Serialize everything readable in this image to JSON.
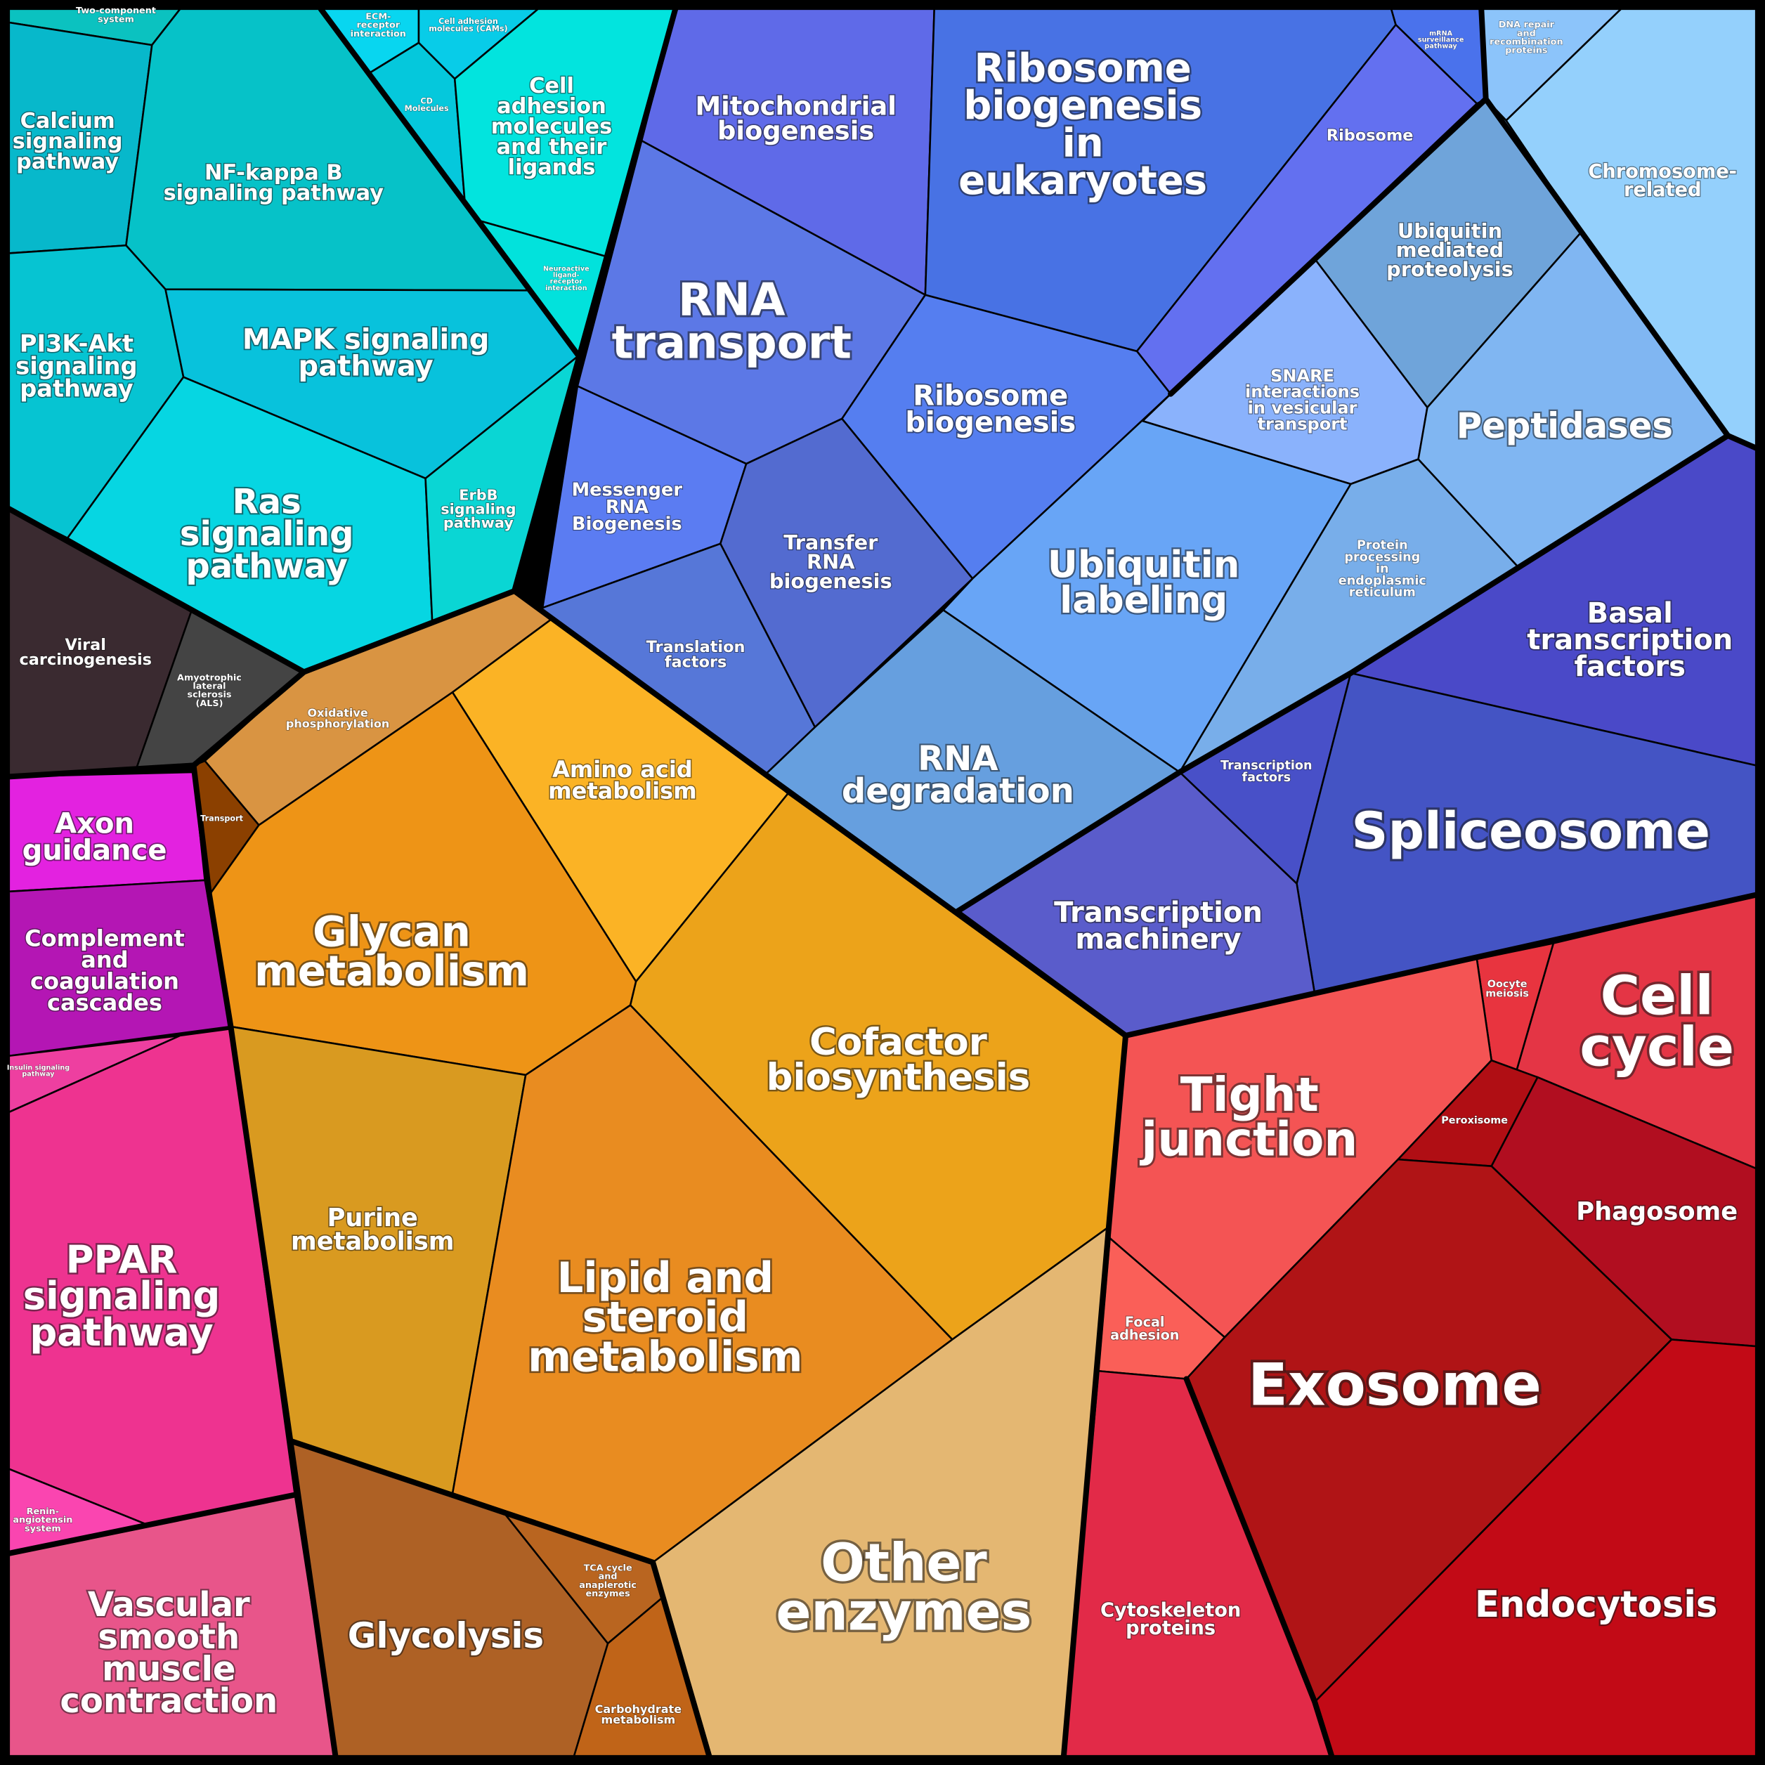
{
  "cells": [
    {
      "label": [
        "Two-component",
        "system"
      ],
      "color": "#0bc2c0"
    },
    {
      "label": [
        "Calcium",
        "signaling",
        "pathway"
      ],
      "color": "#07b8cb"
    },
    {
      "label": [
        "NF-kappa B",
        "signaling pathway"
      ],
      "color": "#06c2c8"
    },
    {
      "label": [
        "ECM-",
        "receptor",
        "interaction"
      ],
      "color": "#08d6f0"
    },
    {
      "label": [
        "Cell adhesion",
        "molecules (CAMs)"
      ],
      "color": "#08cce8"
    },
    {
      "label": [
        "CD",
        "Molecules"
      ],
      "color": "#05c8dc"
    },
    {
      "label": [
        "Cell",
        "adhesion",
        "molecules",
        "and their",
        "ligands"
      ],
      "color": "#02e4de"
    },
    {
      "label": [
        "Neuroactive",
        "ligand-",
        "receptor",
        "interaction"
      ],
      "color": "#02e2dc"
    },
    {
      "label": [
        "PI3K-Akt",
        "signaling",
        "pathway"
      ],
      "color": "#06c4d2"
    },
    {
      "label": [
        "MAPK signaling",
        "pathway"
      ],
      "color": "#08c2dc"
    },
    {
      "label": [
        "Ras",
        "signaling",
        "pathway"
      ],
      "color": "#06d6e2"
    },
    {
      "label": [
        "ErbB",
        "signaling",
        "pathway"
      ],
      "color": "#0ad6d4"
    },
    {
      "label": [
        "Viral",
        "carcinogenesis"
      ],
      "color": "#3a2a30"
    },
    {
      "label": [
        "Amyotrophic",
        "lateral",
        "sclerosis",
        "(ALS)"
      ],
      "color": "#444444"
    },
    {
      "label": [
        "Oxidative",
        "phosphorylation"
      ],
      "color": "#d99442"
    },
    {
      "label": [
        "Transport"
      ],
      "color": "#8b4000"
    },
    {
      "label": [
        "Amino acid",
        "metabolism"
      ],
      "color": "#fbb325"
    },
    {
      "label": [
        "Glycan",
        "metabolism"
      ],
      "color": "#ee9416"
    },
    {
      "label": [
        "Cofactor",
        "biosynthesis"
      ],
      "color": "#eca31a"
    },
    {
      "label": [
        "Purine",
        "metabolism"
      ],
      "color": "#d99a20"
    },
    {
      "label": [
        "Lipid and",
        "steroid",
        "metabolism"
      ],
      "color": "#e98c20"
    },
    {
      "label": [
        "Other",
        "enzymes"
      ],
      "color": "#e4b772"
    },
    {
      "label": [
        "Glycolysis"
      ],
      "color": "#ae6125"
    },
    {
      "label": [
        "TCA cycle",
        "and",
        "anaplerotic",
        "enzymes"
      ],
      "color": "#b96520"
    },
    {
      "label": [
        "Carbohydrate",
        "metabolism"
      ],
      "color": "#c06418"
    },
    {
      "label": [
        "Axon",
        "guidance"
      ],
      "color": "#e322e0"
    },
    {
      "label": [
        "Complement",
        "and",
        "coagulation",
        "cascades"
      ],
      "color": "#b416b4"
    },
    {
      "label": [
        "Insulin signaling",
        "pathway"
      ],
      "color": "#ee3fa0"
    },
    {
      "label": [
        "PPAR",
        "signaling",
        "pathway"
      ],
      "color": "#ee3390"
    },
    {
      "label": [
        "Renin-",
        "angiotensin",
        "system"
      ],
      "color": "#fa45b0"
    },
    {
      "label": [
        "Vascular",
        "smooth",
        "muscle",
        "contraction"
      ],
      "color": "#e8558a"
    },
    {
      "label": [
        "Mitochondrial",
        "biogenesis"
      ],
      "color": "#5f6ae8"
    },
    {
      "label": [
        "Ribosome",
        "biogenesis",
        "in",
        "eukaryotes"
      ],
      "color": "#4872e4"
    },
    {
      "label": [
        "mRNA",
        "surveillance",
        "pathway"
      ],
      "color": "#4a72ec"
    },
    {
      "label": [
        "Ribosome"
      ],
      "color": "#6370f0"
    },
    {
      "label": [
        "RNA",
        "transport"
      ],
      "color": "#5c78e6"
    },
    {
      "label": [
        "Ribosome",
        "biogenesis"
      ],
      "color": "#557ef0"
    },
    {
      "label": [
        "Messenger",
        "RNA",
        "Biogenesis"
      ],
      "color": "#5b7cf2"
    },
    {
      "label": [
        "Transfer",
        "RNA",
        "biogenesis"
      ],
      "color": "#536bd0"
    },
    {
      "label": [
        "Translation",
        "factors"
      ],
      "color": "#5677d8"
    },
    {
      "label": [
        "Chromosome-",
        "related"
      ],
      "color": "#94d0fc"
    },
    {
      "label": [
        "DNA repair",
        "and",
        "recombination",
        "proteins"
      ],
      "color": "#8cc4fa"
    },
    {
      "label": [
        "Ubiquitin",
        "mediated",
        "proteolysis"
      ],
      "color": "#6fa4da"
    },
    {
      "label": [
        "SNARE",
        "interactions",
        "in vesicular",
        "transport"
      ],
      "color": "#8ab2fc"
    },
    {
      "label": [
        "Peptidases"
      ],
      "color": "#80b6f2"
    },
    {
      "label": [
        "Ubiquitin",
        "labeling"
      ],
      "color": "#68a5f6"
    },
    {
      "label": [
        "Protein",
        "processing",
        "in",
        "endoplasmic",
        "reticulum"
      ],
      "color": "#78aeea"
    },
    {
      "label": [
        "RNA",
        "degradation"
      ],
      "color": "#669fdf"
    },
    {
      "label": [
        "Basal",
        "transcription",
        "factors"
      ],
      "color": "#4a49c8"
    },
    {
      "label": [
        "Transcription",
        "factors"
      ],
      "color": "#4850c8"
    },
    {
      "label": [
        "Spliceosome"
      ],
      "color": "#4454c4"
    },
    {
      "label": [
        "Transcription",
        "machinery"
      ],
      "color": "#5a5ccb"
    },
    {
      "label": [
        "Cell",
        "cycle"
      ],
      "color": "#e43545"
    },
    {
      "label": [
        "Oocyte",
        "meiosis"
      ],
      "color": "#e8343f"
    },
    {
      "label": [
        "Tight",
        "junction"
      ],
      "color": "#f45454"
    },
    {
      "label": [
        "Peroxisome"
      ],
      "color": "#b00e14"
    },
    {
      "label": [
        "Phagosome"
      ],
      "color": "#b10e20"
    },
    {
      "label": [
        "Focal",
        "adhesion"
      ],
      "color": "#fa5f58"
    },
    {
      "label": [
        "Exosome"
      ],
      "color": "#b01416"
    },
    {
      "label": [
        "Cytoskeleton",
        "proteins"
      ],
      "color": "#e22a48"
    },
    {
      "label": [
        "Endocytosis"
      ],
      "color": "#c20a16"
    }
  ]
}
